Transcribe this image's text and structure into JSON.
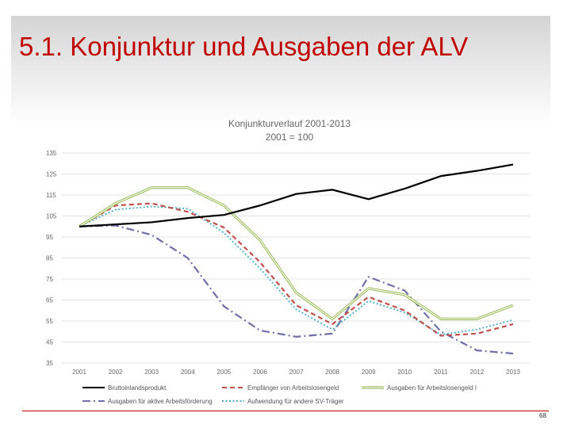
{
  "slide": {
    "title": "5.1. Konjunktur und Ausgaben der ALV",
    "page_number": "68"
  },
  "chart_data": {
    "type": "line",
    "title": "Konjunkturverlauf 2001-2013",
    "subtitle": "2001 = 100",
    "x": [
      "2001",
      "2002",
      "2003",
      "2004",
      "2005",
      "2006",
      "2007",
      "2008",
      "2009",
      "2010",
      "2011",
      "2012",
      "2013"
    ],
    "ylim": [
      35,
      135
    ],
    "yticks": [
      35,
      45,
      55,
      65,
      75,
      85,
      95,
      105,
      115,
      125,
      135
    ],
    "grid": true,
    "legend_position": "bottom",
    "series": [
      {
        "name": "Bruttoinlandsprodukt",
        "color": "#000000",
        "style": "solid",
        "values": [
          100,
          101,
          102,
          104,
          105.5,
          110,
          115.5,
          117.5,
          113,
          118,
          124,
          126.5,
          129.5
        ]
      },
      {
        "name": "Empfänger von Arbeitslosengeld",
        "color": "#c0504d",
        "style": "dashed",
        "values": [
          100,
          110,
          111,
          107,
          99.5,
          83,
          62.5,
          53.5,
          66.5,
          60,
          48,
          49,
          53.5
        ]
      },
      {
        "name": "Ausgaben für Arbeitslosengeld I",
        "color": "#9bbb59",
        "style": "double",
        "values": [
          100,
          111,
          118.5,
          118.5,
          110,
          93.5,
          68.5,
          56,
          70.5,
          67.5,
          56,
          56,
          62.5
        ]
      },
      {
        "name": "Ausgaben für aktive Arbeitsförderung",
        "color": "#7070a8",
        "style": "dashdot",
        "values": [
          100,
          100.5,
          96,
          85,
          62,
          50.5,
          47.5,
          49,
          76,
          69.5,
          50,
          41,
          39.5
        ]
      },
      {
        "name": "Aufwendung für andere SV-Träger",
        "color": "#4bacc6",
        "style": "dotted",
        "values": [
          100,
          108,
          109.5,
          108.5,
          97,
          80,
          60.5,
          51,
          64.5,
          59,
          48.5,
          51,
          55.5
        ]
      }
    ]
  }
}
